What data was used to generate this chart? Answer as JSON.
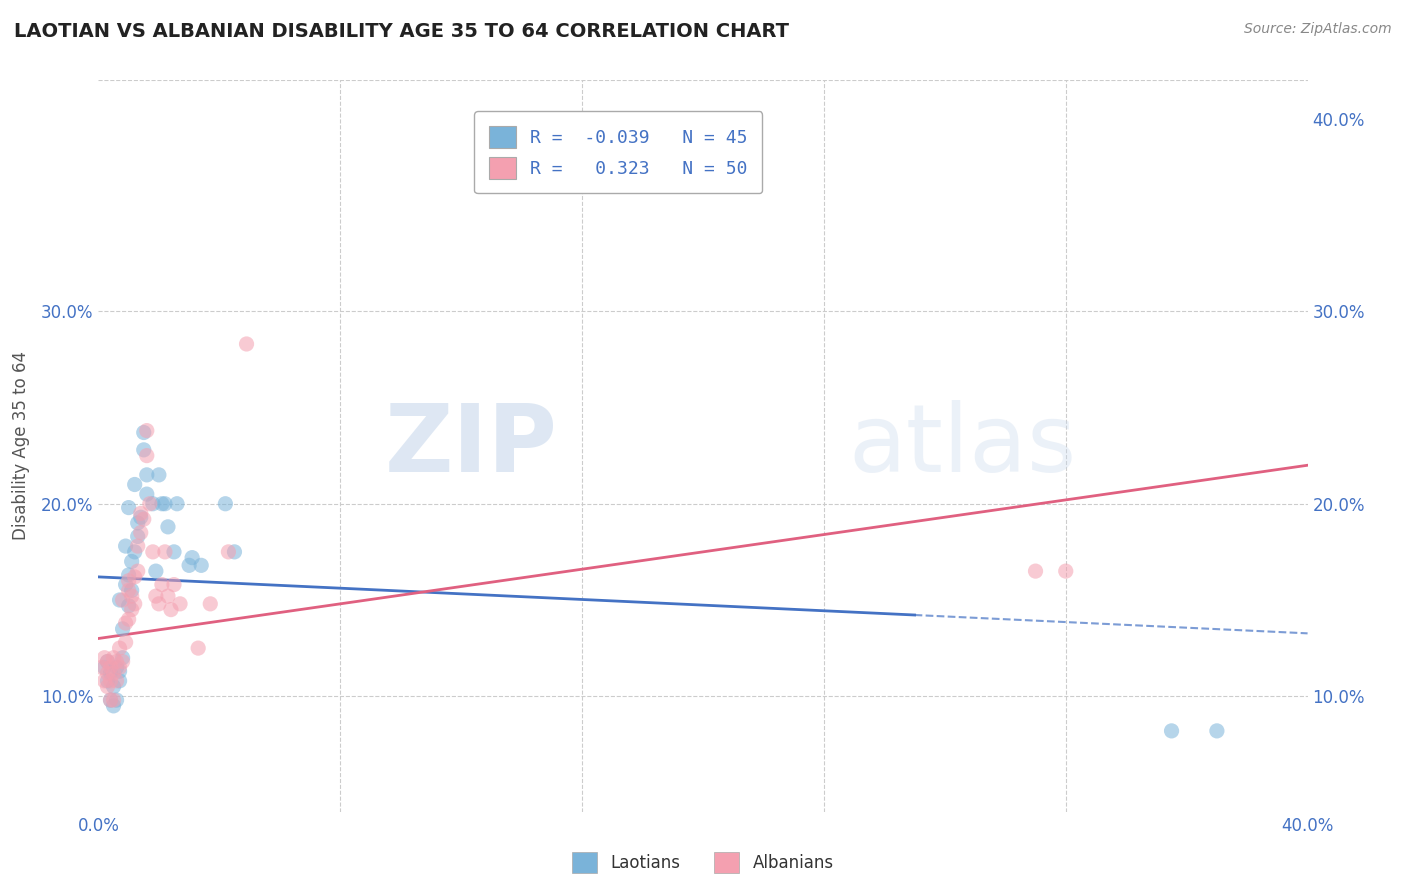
{
  "title": "LAOTIAN VS ALBANIAN DISABILITY AGE 35 TO 64 CORRELATION CHART",
  "source_text": "Source: ZipAtlas.com",
  "ylabel": "Disability Age 35 to 64",
  "xlim": [
    0.0,
    0.4
  ],
  "ylim": [
    0.04,
    0.42
  ],
  "x_ticks": [
    0.0,
    0.08,
    0.16,
    0.24,
    0.32,
    0.4
  ],
  "x_tick_labels": [
    "0.0%",
    "",
    "",
    "",
    "",
    "40.0%"
  ],
  "y_ticks_left": [
    0.1,
    0.2,
    0.3
  ],
  "y_tick_labels_left": [
    "10.0%",
    "20.0%",
    "30.0%"
  ],
  "y_ticks_right": [
    0.1,
    0.2,
    0.3,
    0.4
  ],
  "y_tick_labels_right": [
    "10.0%",
    "20.0%",
    "30.0%",
    "40.0%"
  ],
  "laotian_color": "#7ab3d9",
  "albanian_color": "#f4a0b0",
  "laotian_line_color": "#4472c4",
  "albanian_line_color": "#e06080",
  "laotian_R": -0.039,
  "laotian_N": 45,
  "albanian_R": 0.323,
  "albanian_N": 50,
  "watermark_zip": "ZIP",
  "watermark_atlas": "atlas",
  "laotian_line": [
    [
      0.0,
      0.162
    ],
    [
      0.3,
      0.14
    ]
  ],
  "albanian_line": [
    [
      0.0,
      0.13
    ],
    [
      0.4,
      0.22
    ]
  ],
  "laotian_line_solid_end": 0.27,
  "laotian_scatter": [
    [
      0.002,
      0.115
    ],
    [
      0.003,
      0.118
    ],
    [
      0.003,
      0.108
    ],
    [
      0.004,
      0.112
    ],
    [
      0.004,
      0.098
    ],
    [
      0.005,
      0.095
    ],
    [
      0.005,
      0.105
    ],
    [
      0.006,
      0.115
    ],
    [
      0.006,
      0.098
    ],
    [
      0.007,
      0.108
    ],
    [
      0.007,
      0.113
    ],
    [
      0.007,
      0.15
    ],
    [
      0.008,
      0.12
    ],
    [
      0.008,
      0.135
    ],
    [
      0.009,
      0.178
    ],
    [
      0.009,
      0.158
    ],
    [
      0.01,
      0.163
    ],
    [
      0.01,
      0.147
    ],
    [
      0.01,
      0.198
    ],
    [
      0.011,
      0.17
    ],
    [
      0.011,
      0.155
    ],
    [
      0.012,
      0.175
    ],
    [
      0.012,
      0.21
    ],
    [
      0.013,
      0.19
    ],
    [
      0.013,
      0.183
    ],
    [
      0.014,
      0.193
    ],
    [
      0.015,
      0.228
    ],
    [
      0.015,
      0.237
    ],
    [
      0.016,
      0.215
    ],
    [
      0.016,
      0.205
    ],
    [
      0.018,
      0.2
    ],
    [
      0.019,
      0.165
    ],
    [
      0.02,
      0.215
    ],
    [
      0.021,
      0.2
    ],
    [
      0.022,
      0.2
    ],
    [
      0.023,
      0.188
    ],
    [
      0.025,
      0.175
    ],
    [
      0.026,
      0.2
    ],
    [
      0.03,
      0.168
    ],
    [
      0.031,
      0.172
    ],
    [
      0.034,
      0.168
    ],
    [
      0.042,
      0.2
    ],
    [
      0.045,
      0.175
    ],
    [
      0.355,
      0.082
    ],
    [
      0.37,
      0.082
    ]
  ],
  "albanian_scatter": [
    [
      0.001,
      0.115
    ],
    [
      0.002,
      0.108
    ],
    [
      0.002,
      0.12
    ],
    [
      0.003,
      0.112
    ],
    [
      0.003,
      0.105
    ],
    [
      0.003,
      0.118
    ],
    [
      0.004,
      0.108
    ],
    [
      0.004,
      0.115
    ],
    [
      0.004,
      0.098
    ],
    [
      0.005,
      0.112
    ],
    [
      0.005,
      0.12
    ],
    [
      0.005,
      0.098
    ],
    [
      0.006,
      0.118
    ],
    [
      0.006,
      0.108
    ],
    [
      0.007,
      0.125
    ],
    [
      0.007,
      0.115
    ],
    [
      0.008,
      0.118
    ],
    [
      0.008,
      0.15
    ],
    [
      0.009,
      0.138
    ],
    [
      0.009,
      0.128
    ],
    [
      0.01,
      0.155
    ],
    [
      0.01,
      0.16
    ],
    [
      0.01,
      0.14
    ],
    [
      0.011,
      0.152
    ],
    [
      0.011,
      0.145
    ],
    [
      0.012,
      0.162
    ],
    [
      0.012,
      0.148
    ],
    [
      0.013,
      0.178
    ],
    [
      0.013,
      0.165
    ],
    [
      0.014,
      0.195
    ],
    [
      0.014,
      0.185
    ],
    [
      0.015,
      0.192
    ],
    [
      0.016,
      0.225
    ],
    [
      0.016,
      0.238
    ],
    [
      0.017,
      0.2
    ],
    [
      0.018,
      0.175
    ],
    [
      0.019,
      0.152
    ],
    [
      0.02,
      0.148
    ],
    [
      0.021,
      0.158
    ],
    [
      0.022,
      0.175
    ],
    [
      0.023,
      0.152
    ],
    [
      0.024,
      0.145
    ],
    [
      0.025,
      0.158
    ],
    [
      0.027,
      0.148
    ],
    [
      0.033,
      0.125
    ],
    [
      0.037,
      0.148
    ],
    [
      0.043,
      0.175
    ],
    [
      0.049,
      0.283
    ],
    [
      0.31,
      0.165
    ],
    [
      0.32,
      0.165
    ]
  ]
}
